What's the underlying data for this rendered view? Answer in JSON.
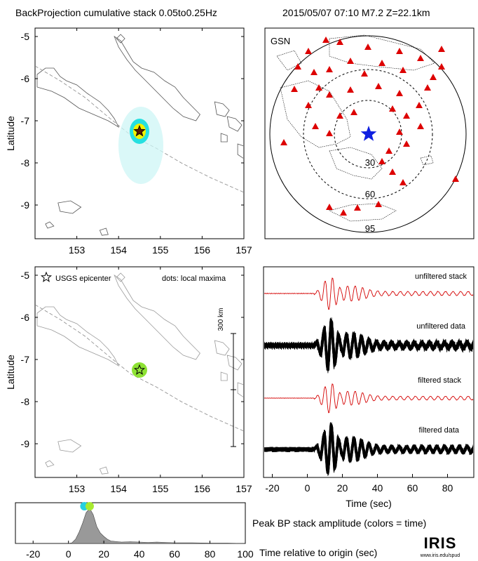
{
  "header": {
    "left_title": "BackProjection cumulative stack 0.05to0.25Hz",
    "right_title": "2015/05/07 07:10  M7.2  Z=22.1km"
  },
  "colors": {
    "stack_trace": "#d40000",
    "data_trace": "#000000",
    "station": "#dd0000",
    "epicenter_star": "#1020e0",
    "peak_fill": "#999999",
    "hot_yellow": "#f2f200",
    "cyan": "#26e0e0",
    "light_cyan": "#cdf6f6",
    "green_blob": "#8ee234",
    "coast": "#555555"
  },
  "chart_data": [
    {
      "type": "scatter",
      "id": "bp-map",
      "ylabel": "Latitude",
      "xlim": [
        152,
        157
      ],
      "ylim": [
        -9.8,
        -4.8
      ],
      "xticks": [
        "153",
        "154",
        "155",
        "156",
        "157"
      ],
      "yticks": [
        "-5",
        "-6",
        "-7",
        "-8",
        "-9"
      ],
      "epicenter": {
        "lon": 154.5,
        "lat": -7.25
      }
    },
    {
      "type": "scatter",
      "id": "gsn-map",
      "network_label": "GSN",
      "distance_rings_deg": [
        "30",
        "60",
        "95"
      ],
      "epicenter_marker": "blue-star",
      "station_marker": "red-triangle"
    },
    {
      "type": "scatter",
      "id": "maxima-map",
      "ylabel": "Latitude",
      "xlim": [
        152,
        157
      ],
      "ylim": [
        -9.8,
        -4.8
      ],
      "xticks": [
        "153",
        "154",
        "155",
        "156",
        "157"
      ],
      "yticks": [
        "-5",
        "-6",
        "-7",
        "-8",
        "-9"
      ],
      "legend_epicenter": "USGS epicenter",
      "legend_dots": "dots: local maxima",
      "scale_label": "300 km",
      "epicenter": {
        "lon": 154.5,
        "lat": -7.25
      }
    },
    {
      "type": "line",
      "id": "waveforms",
      "xlabel": "Time (sec)",
      "xlim": [
        -25,
        95
      ],
      "xticks": [
        "-20",
        "0",
        "20",
        "40",
        "60",
        "80"
      ],
      "series": [
        {
          "name": "unfiltered stack"
        },
        {
          "name": "unfiltered data"
        },
        {
          "name": "filtered stack"
        },
        {
          "name": "filtered data"
        }
      ]
    },
    {
      "type": "area",
      "id": "peak-amplitude",
      "title": "Peak BP stack amplitude (colors = time)",
      "xlabel": "Time relative to origin (sec)",
      "xlim": [
        -30,
        100
      ],
      "xticks": [
        "-20",
        "0",
        "20",
        "40",
        "60",
        "80",
        "100"
      ],
      "x": [
        -30,
        0,
        2,
        4,
        6,
        8,
        10,
        12,
        14,
        16,
        18,
        20,
        22,
        24,
        26,
        28,
        30,
        35,
        40,
        45,
        50,
        55,
        60,
        70,
        80,
        90,
        100
      ],
      "y": [
        0,
        0,
        0.02,
        0.12,
        0.32,
        0.58,
        0.88,
        1.0,
        0.82,
        0.48,
        0.3,
        0.2,
        0.12,
        0.07,
        0.06,
        0.05,
        0.04,
        0.05,
        0.04,
        0.03,
        0.04,
        0.03,
        0.02,
        0.02,
        0.01,
        0.01,
        0
      ],
      "maxima_times": [
        9,
        12
      ]
    }
  ],
  "logo": {
    "text": "IRIS",
    "url_text": "www.iris.edu/spud"
  }
}
